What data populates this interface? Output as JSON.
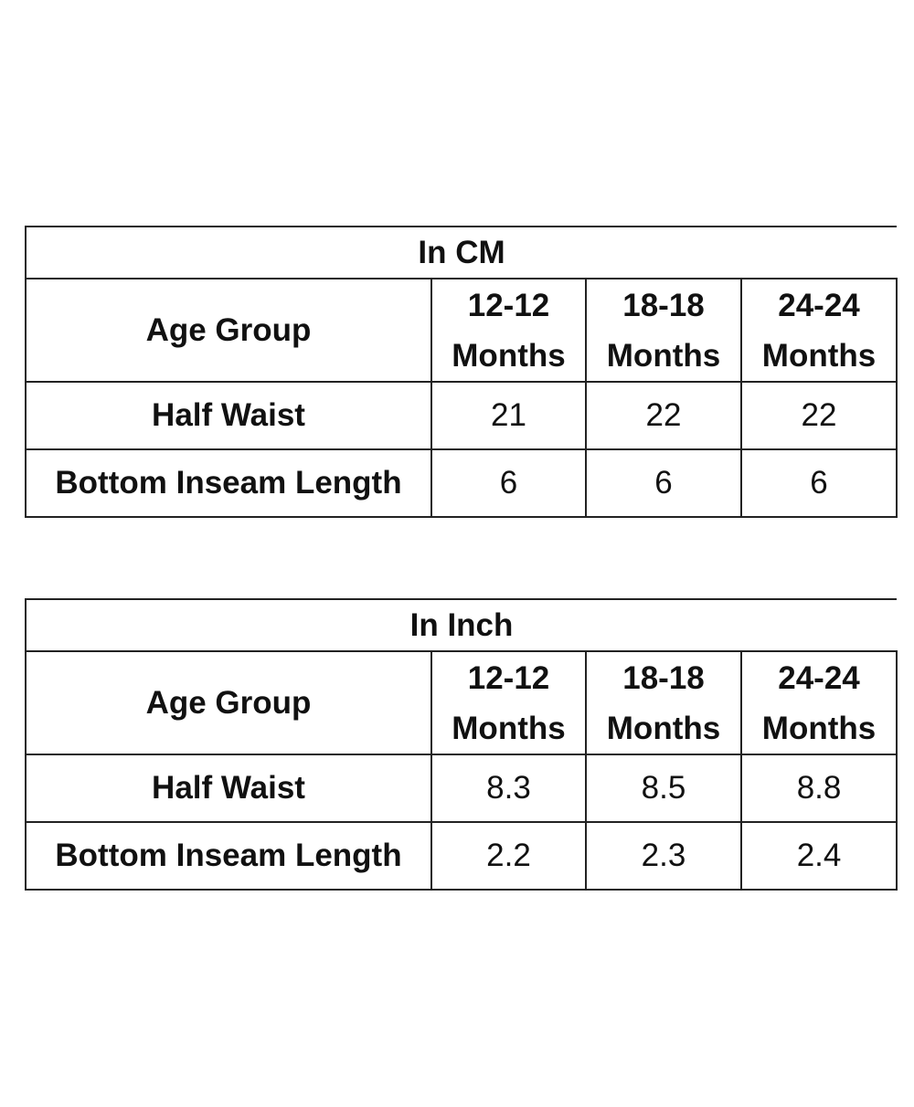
{
  "tables": [
    {
      "title": "In CM",
      "header": {
        "label": "Age Group",
        "columns": [
          {
            "line1": "12-12",
            "line2": "Months"
          },
          {
            "line1": "18-18",
            "line2": "Months"
          },
          {
            "line1": "24-24",
            "line2": "Months"
          }
        ]
      },
      "rows": [
        {
          "label": "Half Waist",
          "values": [
            "21",
            "22",
            "22"
          ]
        },
        {
          "label": "Bottom Inseam Length",
          "values": [
            "6",
            "6",
            "6"
          ]
        }
      ]
    },
    {
      "title": "In Inch",
      "header": {
        "label": "Age Group",
        "columns": [
          {
            "line1": "12-12",
            "line2": "Months"
          },
          {
            "line1": "18-18",
            "line2": "Months"
          },
          {
            "line1": "24-24",
            "line2": "Months"
          }
        ]
      },
      "rows": [
        {
          "label": "Half Waist",
          "values": [
            "8.3",
            "8.5",
            "8.8"
          ]
        },
        {
          "label": "Bottom Inseam Length",
          "values": [
            "2.2",
            "2.3",
            "2.4"
          ]
        }
      ]
    }
  ]
}
